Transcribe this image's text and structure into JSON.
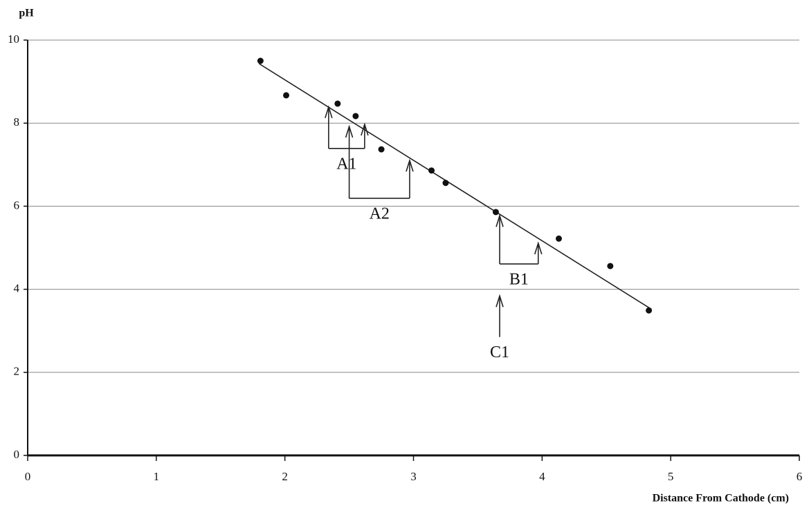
{
  "chart_data": {
    "type": "scatter",
    "y_label": "pH",
    "x_label": "Distance From Cathode (cm)",
    "x": [
      1.81,
      2.01,
      2.41,
      2.55,
      2.75,
      3.14,
      3.25,
      3.64,
      4.13,
      4.53,
      4.83
    ],
    "values": [
      9.5,
      8.67,
      8.47,
      8.17,
      7.37,
      6.86,
      6.56,
      5.86,
      5.22,
      4.56,
      3.49
    ],
    "color": "#111111",
    "trendline": {
      "x": [
        1.8,
        4.85
      ],
      "y": [
        9.43,
        3.52
      ]
    },
    "xlim": [
      0,
      6
    ],
    "xticks": [
      0,
      1,
      2,
      3,
      4,
      5,
      6
    ],
    "ylim": [
      0,
      10
    ],
    "yticks": [
      0,
      2,
      4,
      6,
      8,
      10
    ],
    "grid": true,
    "annotations": [
      {
        "text": "A1",
        "x": [
          2.34,
          2.62
        ],
        "tip": [
          8.39,
          7.97
        ],
        "bracket": 7.39
      },
      {
        "text": "A2",
        "x": [
          2.5,
          2.97
        ],
        "tip": [
          7.92,
          7.1
        ],
        "bracket": 6.19
      },
      {
        "text": "B1",
        "x": [
          3.67,
          3.97
        ],
        "tip": [
          5.77,
          5.11
        ],
        "bracket": 4.61
      },
      {
        "text": "C1",
        "x": [
          3.67
        ],
        "tip": [
          3.84
        ],
        "base": 2.85
      }
    ]
  }
}
